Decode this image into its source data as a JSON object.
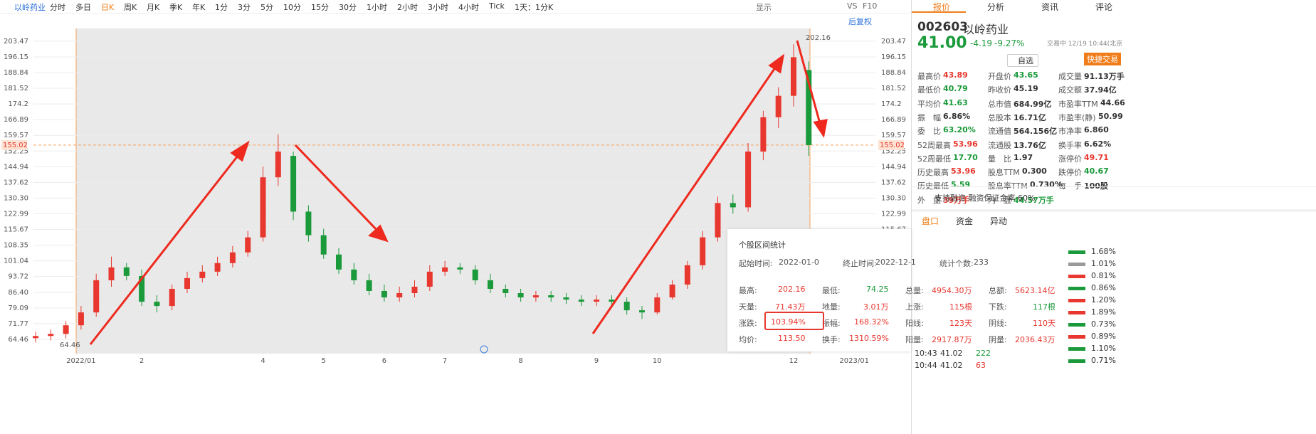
{
  "toolbar": {
    "stock": "以岭药业",
    "periods": [
      "分时",
      "多日",
      "日K",
      "周K",
      "月K",
      "季K",
      "年K",
      "1分",
      "3分",
      "5分",
      "10分",
      "15分",
      "30分",
      "1小时",
      "2小时",
      "3小时",
      "4小时",
      "Tick",
      "1天：1分K"
    ],
    "tools": [
      "显示",
      "VS",
      "F10"
    ],
    "adjust": "后复权"
  },
  "chart_data": {
    "type": "candlestick",
    "categories": [
      null,
      null,
      null,
      "2022/01",
      null,
      null,
      null,
      "2",
      null,
      null,
      null,
      null,
      null,
      null,
      null,
      "4",
      null,
      null,
      null,
      "5",
      null,
      null,
      null,
      "6",
      null,
      null,
      null,
      "7",
      null,
      null,
      null,
      null,
      "8",
      null,
      null,
      null,
      null,
      "9",
      null,
      null,
      null,
      "10",
      null,
      null,
      null,
      null,
      null,
      null,
      null,
      null,
      "12",
      null,
      null,
      null,
      "2023/01",
      null
    ],
    "open": [
      65,
      66,
      67,
      71,
      77,
      92,
      98,
      94,
      82,
      80,
      88,
      93,
      96,
      100,
      105,
      112,
      140,
      150,
      124,
      113,
      104,
      97,
      92,
      87,
      84,
      86,
      89,
      96,
      98,
      97,
      92,
      88,
      86,
      84,
      85,
      84,
      83,
      82,
      83,
      82,
      78,
      77,
      84,
      90,
      99,
      112,
      128,
      126,
      152,
      168,
      178,
      190,
      null,
      null,
      null,
      null
    ],
    "high": [
      68,
      69,
      73,
      80,
      95,
      103,
      100,
      97,
      85,
      90,
      96,
      99,
      103,
      108,
      115,
      145,
      160,
      152,
      127,
      116,
      107,
      100,
      95,
      90,
      89,
      92,
      99,
      101,
      100,
      99,
      95,
      90,
      88,
      87,
      87,
      86,
      85,
      85,
      85,
      84,
      80,
      86,
      92,
      101,
      115,
      131,
      132,
      156,
      171,
      182,
      202,
      194,
      null,
      null,
      null,
      null
    ],
    "low": [
      63,
      64,
      65,
      69,
      75,
      89,
      92,
      80,
      77,
      78,
      86,
      91,
      94,
      98,
      103,
      110,
      136,
      120,
      110,
      102,
      95,
      90,
      85,
      82,
      82,
      84,
      87,
      94,
      95,
      90,
      86,
      84,
      82,
      82,
      82,
      81,
      80,
      80,
      80,
      76,
      74,
      76,
      83,
      88,
      97,
      110,
      123,
      124,
      148,
      163,
      173,
      150,
      null,
      null,
      null,
      null
    ],
    "close": [
      66,
      67,
      71,
      77,
      92,
      98,
      94,
      82,
      80,
      88,
      93,
      96,
      100,
      105,
      112,
      140,
      152,
      124,
      113,
      104,
      97,
      92,
      87,
      84,
      86,
      89,
      96,
      98,
      97,
      92,
      88,
      86,
      84,
      85,
      84,
      83,
      82,
      83,
      82,
      78,
      77,
      84,
      90,
      99,
      112,
      128,
      126,
      152,
      168,
      178,
      196,
      155,
      null,
      null,
      null,
      null
    ],
    "up_color": "#e8372e",
    "down_color": "#1a9a3a",
    "ylim": [
      57.8,
      209.4
    ],
    "yticks": [
      64.46,
      71.77,
      79.09,
      {
        "value": 86.4,
        "label": "86.40"
      },
      93.72,
      101.04,
      108.35,
      115.67,
      122.99,
      {
        "value": 130.3,
        "label": "130.30"
      },
      137.62,
      144.94,
      152.25,
      159.57,
      166.89,
      174.2,
      181.52,
      188.84,
      196.15,
      203.47
    ],
    "price_line": 155.02,
    "low_label": 64.46,
    "high_label": 202.16,
    "grid": true
  },
  "tabs": [
    "报价",
    "分析",
    "资讯",
    "评论"
  ],
  "quote": {
    "code": "002603",
    "name": "以岭药业",
    "price": "41.00",
    "change": "-4.19",
    "pct": "-9.27%",
    "time": "交易中 12/19 10:44(北京",
    "watch": "自选",
    "trade": "快捷交易",
    "cells": [
      [
        {
          "label": "最高价",
          "value": "43.89",
          "color": "#e8372e"
        },
        {
          "label": "开盘价",
          "value": "43.65",
          "color": "#1a9a3a"
        },
        {
          "label": "成交量",
          "value": "91.13万手",
          "color": "#333"
        }
      ],
      [
        {
          "label": "最低价",
          "value": "40.79",
          "color": "#1a9a3a"
        },
        {
          "label": "昨收价",
          "value": "45.19",
          "color": "#333"
        },
        {
          "label": "成交额",
          "value": "37.94亿",
          "color": "#333"
        }
      ],
      [
        {
          "label": "平均价",
          "value": "41.63",
          "color": "#1a9a3a"
        },
        {
          "label": "总市值",
          "value": "684.99亿",
          "color": "#333"
        },
        {
          "label": "市盈率TTM",
          "value": "44.66",
          "color": "#333"
        }
      ],
      [
        {
          "label": "振　幅",
          "value": "6.86%",
          "color": "#333"
        },
        {
          "label": "总股本",
          "value": "16.71亿",
          "color": "#333"
        },
        {
          "label": "市盈率(静)",
          "value": "50.99",
          "color": "#333"
        }
      ],
      [
        {
          "label": "委　比",
          "value": "63.20%",
          "color": "#1a9a3a"
        },
        {
          "label": "流通值",
          "value": "564.156亿",
          "color": "#333"
        },
        {
          "label": "市净率",
          "value": "6.860",
          "color": "#333"
        }
      ],
      [
        {
          "label": "52周最高",
          "value": "53.96",
          "color": "#e8372e"
        },
        {
          "label": "流通股",
          "value": "13.76亿",
          "color": "#333"
        },
        {
          "label": "换手率",
          "value": "6.62%",
          "color": "#333"
        }
      ],
      [
        {
          "label": "52周最低",
          "value": "17.70",
          "color": "#1a9a3a"
        },
        {
          "label": "量　比",
          "value": "1.97",
          "color": "#333"
        },
        {
          "label": "涨停价",
          "value": "49.71",
          "color": "#e8372e"
        }
      ],
      [
        {
          "label": "历史最高",
          "value": "53.96",
          "color": "#e8372e"
        },
        {
          "label": "股息TTM",
          "value": "0.300",
          "color": "#333"
        },
        {
          "label": "跌停价",
          "value": "40.67",
          "color": "#1a9a3a"
        }
      ],
      [
        {
          "label": "历史最低",
          "value": "5.59",
          "color": "#1a9a3a"
        },
        {
          "label": "股息率TTM",
          "value": "0.730%",
          "color": "#333"
        },
        {
          "label": "每　手",
          "value": "100股",
          "color": "#333"
        }
      ],
      [
        {
          "label": "外　盘",
          "value": "39万手",
          "color": "#e8372e"
        },
        {
          "label": "内　盘",
          "value": "44.57万手",
          "color": "#1a9a3a"
        }
      ]
    ],
    "notice": "支持融资 融资保证金率 60%"
  },
  "tabs2": [
    "盘口",
    "资金",
    "异动"
  ],
  "stats": {
    "title": "个股区间统计",
    "start_label": "起始时间:",
    "start": "2022-01-0",
    "end_label": "终止时间:",
    "end": "2022-12-1",
    "count_label": "统计个数:",
    "count": "233",
    "rows": [
      [
        [
          "最高:",
          "202.16"
        ],
        [
          "最低:",
          "74.25"
        ],
        [
          "总量:",
          "4954.30万"
        ],
        [
          "总额:",
          "5623.14亿"
        ]
      ],
      [
        [
          "天量:",
          "71.43万"
        ],
        [
          "地量:",
          "3.01万"
        ],
        [
          "上涨:",
          "115根"
        ],
        [
          "下跌:",
          "117根"
        ]
      ],
      [
        [
          "涨跌:",
          "103.94%"
        ],
        [
          "振幅:",
          "168.32%"
        ],
        [
          "阳线:",
          "123天"
        ],
        [
          "阴线:",
          "110天"
        ]
      ],
      [
        [
          "均价:",
          "113.50"
        ],
        [
          "换手:",
          "1310.59%"
        ],
        [
          "阳量:",
          "2917.87万"
        ],
        [
          "阴量:",
          "2036.43万"
        ]
      ]
    ]
  },
  "ticks": [
    [
      "10:43",
      "41.02",
      "222"
    ],
    [
      "10:44",
      "41.02",
      "63"
    ]
  ],
  "levels": [
    {
      "pct": "1.68%",
      "color": "#1a9a3a"
    },
    {
      "pct": "1.01%",
      "color": "#999"
    },
    {
      "pct": "0.81%",
      "color": "#e8372e"
    },
    {
      "pct": "0.86%",
      "color": "#1a9a3a"
    },
    {
      "pct": "1.20%",
      "color": "#e8372e"
    },
    {
      "pct": "1.89%",
      "color": "#e8372e"
    },
    {
      "pct": "0.73%",
      "color": "#1a9a3a"
    },
    {
      "pct": "0.89%",
      "color": "#e8372e"
    },
    {
      "pct": "1.10%",
      "color": "#1a9a3a"
    },
    {
      "pct": "0.71%",
      "color": "#1a9a3a"
    }
  ]
}
